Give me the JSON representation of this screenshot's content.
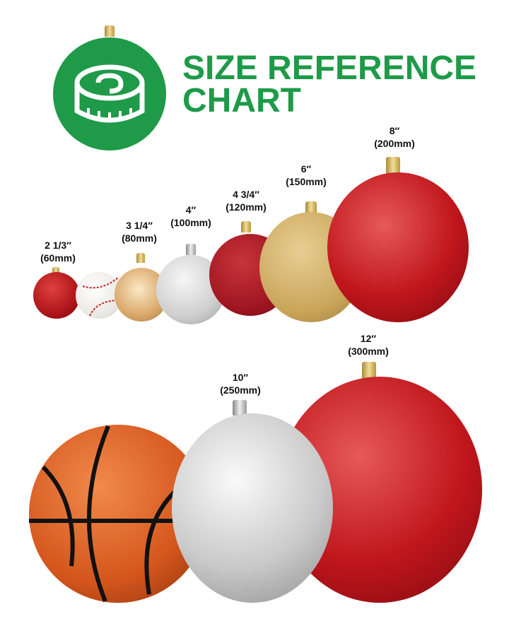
{
  "title": {
    "line1": "SIZE REFERENCE",
    "line2": "CHART"
  },
  "logo_icon": "tape-measure-icon",
  "colors": {
    "brand_green": "#1e9a48",
    "red": "#c0161c",
    "gold": "#c9a55a",
    "silver": "#c8c8c8"
  },
  "items": [
    {
      "inches": "2 1/3″",
      "mm": "(60mm)"
    },
    {
      "inches": "3 1/4″",
      "mm": "(80mm)"
    },
    {
      "inches": "4″",
      "mm": "(100mm)"
    },
    {
      "inches": "4 3/4″",
      "mm": "(120mm)"
    },
    {
      "inches": "6″",
      "mm": "(150mm)"
    },
    {
      "inches": "8″",
      "mm": "(200mm)"
    },
    {
      "inches": "10″",
      "mm": "(250mm)"
    },
    {
      "inches": "12″",
      "mm": "(300mm)"
    }
  ]
}
